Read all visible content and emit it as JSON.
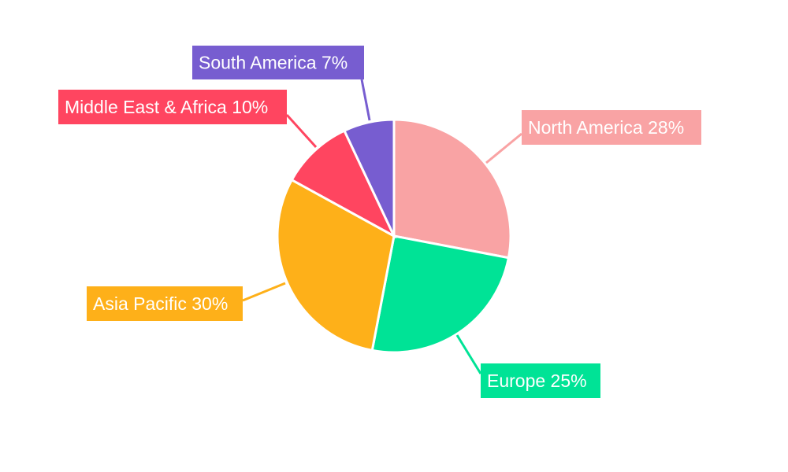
{
  "chart_data": {
    "type": "pie",
    "title": "",
    "start_angle": "top",
    "direction": "clockwise",
    "slices": [
      {
        "label": "North America 28%",
        "name": "North America",
        "value": 28,
        "color": "#F9A3A4"
      },
      {
        "label": "Europe 25%",
        "name": "Europe",
        "value": 25,
        "color": "#00E396"
      },
      {
        "label": "Asia Pacific 30%",
        "name": "Asia Pacific",
        "value": 30,
        "color": "#FEB019"
      },
      {
        "label": "Middle East & Africa 10%",
        "name": "Middle East & Africa",
        "value": 10,
        "color": "#FF4560"
      },
      {
        "label": "South America 7%",
        "name": "South America",
        "value": 7,
        "color": "#775DD0"
      }
    ]
  }
}
